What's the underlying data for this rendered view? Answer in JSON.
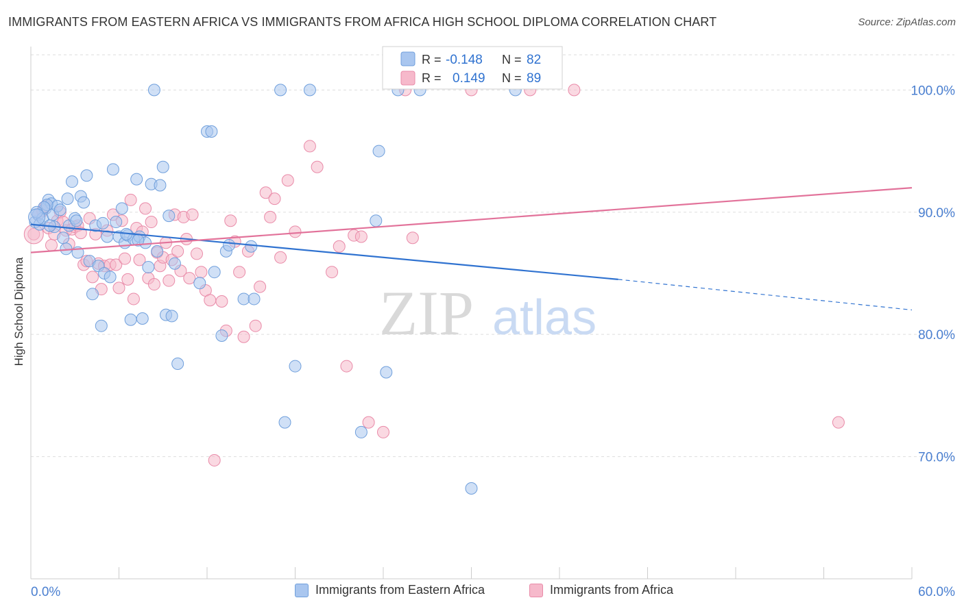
{
  "title": "IMMIGRANTS FROM EASTERN AFRICA VS IMMIGRANTS FROM AFRICA HIGH SCHOOL DIPLOMA CORRELATION CHART",
  "source": "Source: ZipAtlas.com",
  "watermark": {
    "zip": "ZIP",
    "atlas": "atlas"
  },
  "colors": {
    "blue_fill": "#a9c6ef",
    "blue_stroke": "#6f9fdc",
    "blue_line": "#2f72d0",
    "pink_fill": "#f6b9cb",
    "pink_stroke": "#e98aa8",
    "pink_line": "#e2729a",
    "axis_text": "#4a7fd0",
    "grid": "#dddddd"
  },
  "legend_top": {
    "rows": [
      {
        "r_label": "R =",
        "r_value": "-0.148",
        "n_label": "N =",
        "n_value": "82",
        "series": "blue"
      },
      {
        "r_label": "R =",
        "r_value": "0.149",
        "n_label": "N =",
        "n_value": "89",
        "series": "pink"
      }
    ]
  },
  "legend_bottom": [
    {
      "label": "Immigrants from Eastern Africa",
      "series": "blue"
    },
    {
      "label": "Immigrants from Africa",
      "series": "pink"
    }
  ],
  "chart_data": {
    "type": "scatter",
    "title": "IMMIGRANTS FROM EASTERN AFRICA VS IMMIGRANTS FROM AFRICA HIGH SCHOOL DIPLOMA CORRELATION CHART",
    "xlabel": "",
    "ylabel": "High School Diploma",
    "xlim": [
      0,
      60
    ],
    "ylim": [
      60,
      104
    ],
    "x_tick_labels": [
      "0.0%",
      "60.0%"
    ],
    "y_ticks": [
      70,
      80,
      90,
      100
    ],
    "y_tick_labels": [
      "70.0%",
      "80.0%",
      "90.0%",
      "100.0%"
    ],
    "grid": true,
    "legend_position": "top-center",
    "series": [
      {
        "name": "Immigrants from Eastern Africa",
        "r": -0.148,
        "n": 82,
        "trend": {
          "x_start": 0,
          "y_start": 89.0,
          "x_end": 40,
          "y_end": 84.5,
          "dashed_to_x": 60,
          "dashed_to_y": 82.0
        },
        "points": [
          [
            0.3,
            89.2
          ],
          [
            0.5,
            89.8
          ],
          [
            0.6,
            89.0
          ],
          [
            0.8,
            89.5
          ],
          [
            1.0,
            90.3
          ],
          [
            1.2,
            91.0
          ],
          [
            1.4,
            90.7
          ],
          [
            1.5,
            89.8
          ],
          [
            1.6,
            88.8
          ],
          [
            1.8,
            90.5
          ],
          [
            2.0,
            90.2
          ],
          [
            2.2,
            87.9
          ],
          [
            2.4,
            87.0
          ],
          [
            2.6,
            88.9
          ],
          [
            2.8,
            92.5
          ],
          [
            3.0,
            89.5
          ],
          [
            3.2,
            86.7
          ],
          [
            3.4,
            91.3
          ],
          [
            3.6,
            90.8
          ],
          [
            3.8,
            93.0
          ],
          [
            4.0,
            86.0
          ],
          [
            4.2,
            83.3
          ],
          [
            4.4,
            88.9
          ],
          [
            4.6,
            85.6
          ],
          [
            4.8,
            80.7
          ],
          [
            5.0,
            85.0
          ],
          [
            5.2,
            88.0
          ],
          [
            5.4,
            84.7
          ],
          [
            5.6,
            93.5
          ],
          [
            5.8,
            89.2
          ],
          [
            6.0,
            88.0
          ],
          [
            6.2,
            90.3
          ],
          [
            6.4,
            87.5
          ],
          [
            6.6,
            88.1
          ],
          [
            6.8,
            81.2
          ],
          [
            7.0,
            87.8
          ],
          [
            7.2,
            92.7
          ],
          [
            7.4,
            88.0
          ],
          [
            7.6,
            81.3
          ],
          [
            7.8,
            87.5
          ],
          [
            8.0,
            85.5
          ],
          [
            8.2,
            92.3
          ],
          [
            8.4,
            100.0
          ],
          [
            8.6,
            86.8
          ],
          [
            8.8,
            92.2
          ],
          [
            9.0,
            93.7
          ],
          [
            9.2,
            81.6
          ],
          [
            9.4,
            89.7
          ],
          [
            9.6,
            81.5
          ],
          [
            9.8,
            85.8
          ],
          [
            10.0,
            77.6
          ],
          [
            11.5,
            84.2
          ],
          [
            12.0,
            96.6
          ],
          [
            12.3,
            96.6
          ],
          [
            12.5,
            85.1
          ],
          [
            13.0,
            79.9
          ],
          [
            13.3,
            86.8
          ],
          [
            13.5,
            87.3
          ],
          [
            14.5,
            82.9
          ],
          [
            15.0,
            87.2
          ],
          [
            15.2,
            82.9
          ],
          [
            17.0,
            100.0
          ],
          [
            17.3,
            72.8
          ],
          [
            18.0,
            77.4
          ],
          [
            22.5,
            72.0
          ],
          [
            23.5,
            89.3
          ],
          [
            23.7,
            95.0
          ],
          [
            24.2,
            76.9
          ],
          [
            25.0,
            100.0
          ],
          [
            30.0,
            67.4
          ],
          [
            1.1,
            90.6
          ],
          [
            2.5,
            91.1
          ],
          [
            3.1,
            89.3
          ],
          [
            4.9,
            89.1
          ],
          [
            6.5,
            88.2
          ],
          [
            7.3,
            87.7
          ],
          [
            0.9,
            90.4
          ],
          [
            1.3,
            88.9
          ],
          [
            33.0,
            100.0
          ],
          [
            19.0,
            100.0
          ],
          [
            26.5,
            100.0
          ],
          [
            0.4,
            90.0
          ]
        ]
      },
      {
        "name": "Immigrants from Africa",
        "r": 0.149,
        "n": 89,
        "trend": {
          "x_start": 0,
          "y_start": 86.7,
          "x_end": 60,
          "y_end": 92.0
        },
        "points": [
          [
            0.2,
            88.2
          ],
          [
            0.5,
            89.8
          ],
          [
            0.8,
            90.1
          ],
          [
            1.0,
            90.5
          ],
          [
            1.2,
            88.7
          ],
          [
            1.4,
            87.3
          ],
          [
            1.6,
            88.2
          ],
          [
            1.8,
            89.3
          ],
          [
            2.0,
            90.0
          ],
          [
            2.2,
            89.2
          ],
          [
            2.4,
            88.5
          ],
          [
            2.6,
            87.4
          ],
          [
            2.8,
            88.6
          ],
          [
            3.0,
            88.8
          ],
          [
            3.2,
            88.9
          ],
          [
            3.4,
            88.3
          ],
          [
            3.6,
            85.7
          ],
          [
            3.8,
            86.0
          ],
          [
            4.0,
            89.5
          ],
          [
            4.2,
            84.7
          ],
          [
            4.4,
            88.2
          ],
          [
            4.6,
            85.8
          ],
          [
            4.8,
            83.7
          ],
          [
            5.0,
            85.6
          ],
          [
            5.2,
            88.5
          ],
          [
            5.4,
            85.7
          ],
          [
            5.6,
            89.8
          ],
          [
            5.8,
            85.7
          ],
          [
            6.0,
            83.8
          ],
          [
            6.2,
            89.3
          ],
          [
            6.4,
            86.2
          ],
          [
            6.6,
            84.5
          ],
          [
            6.8,
            91.0
          ],
          [
            7.0,
            82.9
          ],
          [
            7.2,
            88.7
          ],
          [
            7.4,
            86.1
          ],
          [
            7.6,
            88.4
          ],
          [
            7.8,
            90.3
          ],
          [
            8.0,
            84.6
          ],
          [
            8.2,
            89.2
          ],
          [
            8.4,
            84.1
          ],
          [
            8.6,
            86.7
          ],
          [
            8.8,
            85.6
          ],
          [
            9.0,
            86.3
          ],
          [
            9.2,
            87.5
          ],
          [
            9.4,
            84.4
          ],
          [
            9.6,
            86.1
          ],
          [
            9.8,
            89.8
          ],
          [
            10.0,
            86.8
          ],
          [
            10.2,
            85.2
          ],
          [
            10.4,
            89.6
          ],
          [
            10.6,
            87.8
          ],
          [
            10.8,
            84.6
          ],
          [
            11.0,
            89.8
          ],
          [
            11.3,
            86.6
          ],
          [
            11.6,
            85.1
          ],
          [
            11.9,
            83.6
          ],
          [
            12.2,
            82.8
          ],
          [
            12.5,
            69.7
          ],
          [
            13.0,
            82.7
          ],
          [
            13.3,
            80.3
          ],
          [
            13.6,
            89.3
          ],
          [
            13.9,
            87.6
          ],
          [
            14.2,
            85.1
          ],
          [
            14.5,
            79.8
          ],
          [
            14.8,
            86.8
          ],
          [
            15.3,
            80.7
          ],
          [
            15.6,
            83.9
          ],
          [
            16.0,
            91.6
          ],
          [
            16.3,
            89.6
          ],
          [
            16.6,
            91.1
          ],
          [
            17.0,
            86.3
          ],
          [
            17.5,
            92.6
          ],
          [
            18.0,
            88.4
          ],
          [
            19.0,
            95.4
          ],
          [
            19.5,
            93.7
          ],
          [
            20.5,
            85.1
          ],
          [
            21.0,
            87.2
          ],
          [
            21.5,
            77.4
          ],
          [
            22.0,
            88.1
          ],
          [
            22.5,
            88.0
          ],
          [
            23.0,
            72.8
          ],
          [
            24.0,
            72.0
          ],
          [
            25.5,
            100.0
          ],
          [
            26.0,
            87.9
          ],
          [
            30.0,
            100.0
          ],
          [
            34.0,
            100.0
          ],
          [
            37.0,
            100.0
          ],
          [
            55.0,
            72.8
          ]
        ]
      }
    ]
  }
}
